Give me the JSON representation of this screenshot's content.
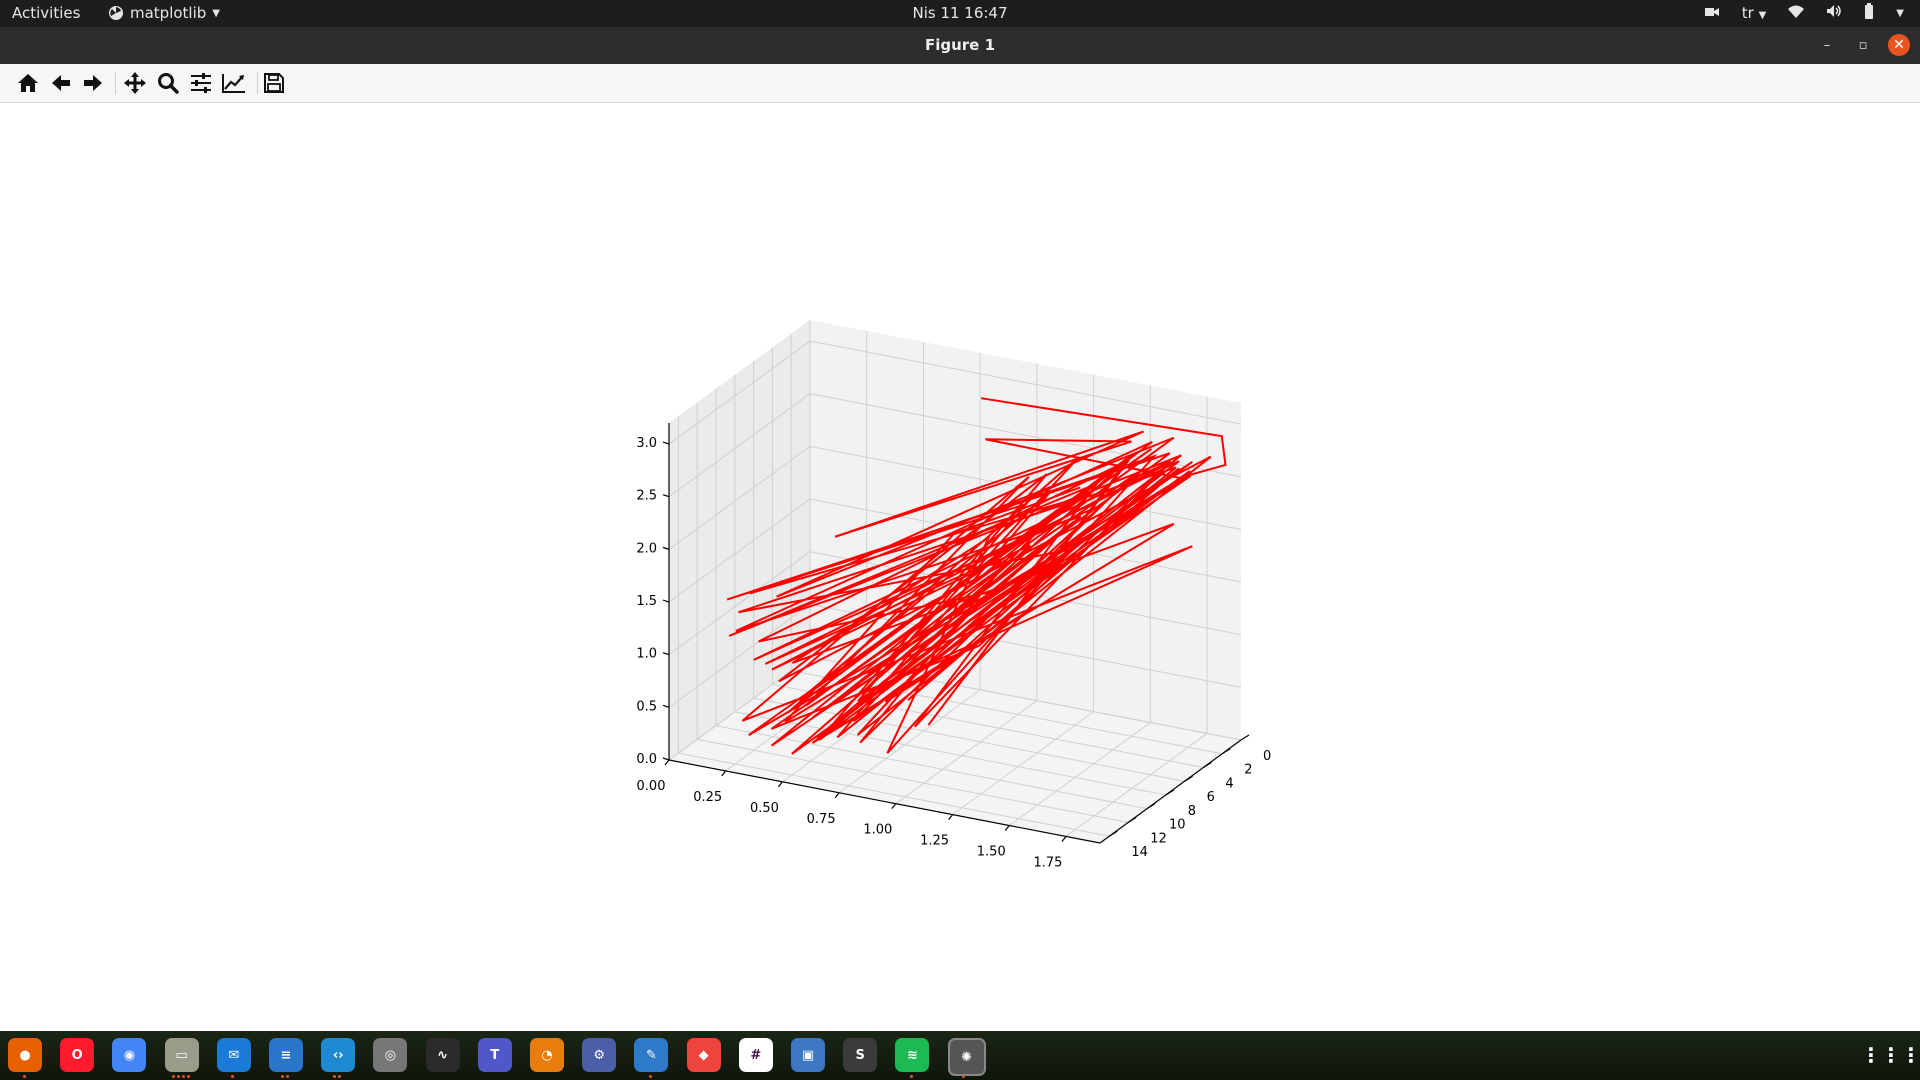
{
  "topbar": {
    "activities": "Activities",
    "app_name": "matplotlib",
    "clock": "Nis 11  16:47",
    "keyboard_layout": "tr"
  },
  "window": {
    "title": "Figure 1"
  },
  "toolbar": {
    "buttons": [
      "home-icon",
      "back-icon",
      "forward-icon",
      "pan-icon",
      "zoom-icon",
      "configure-subplots-icon",
      "edit-axis-icon",
      "save-icon"
    ]
  },
  "chart_data": {
    "type": "line",
    "projection": "3d",
    "color": "#ff0000",
    "title": "",
    "x_ticks": [
      "0.00",
      "0.25",
      "0.50",
      "0.75",
      "1.00",
      "1.25",
      "1.50",
      "1.75"
    ],
    "y_ticks": [
      "0",
      "2",
      "4",
      "6",
      "8",
      "10",
      "12",
      "14"
    ],
    "z_ticks": [
      "0.0",
      "0.5",
      "1.0",
      "1.5",
      "2.0",
      "2.5",
      "3.0"
    ],
    "xlim": [
      0,
      1.9
    ],
    "ylim": [
      0,
      15
    ],
    "zlim": [
      0,
      3.2
    ],
    "grid": true,
    "series": [
      {
        "x": [
          0.92,
          1.84,
          1.84,
          1.69,
          0.98,
          1.45,
          0.67,
          1.52,
          0.35,
          1.62,
          0.52,
          1.11,
          0.22,
          1.76,
          0.81,
          1.29,
          0.44,
          1.55,
          0.17,
          1.38,
          0.61,
          1.71,
          0.28,
          1.02,
          1.49,
          0.39,
          1.81,
          0.73,
          1.18,
          0.09,
          1.64,
          0.55,
          1.33,
          0.86,
          1.77,
          0.31,
          1.08,
          1.58,
          0.47,
          1.26,
          0.68,
          1.73,
          0.14,
          1.41,
          0.95,
          1.67,
          0.58,
          1.21,
          0.36,
          1.85,
          0.79,
          1.12,
          0.25,
          1.53,
          1.04,
          1.47,
          0.63,
          1.79,
          0.42,
          1.16,
          0.88,
          1.6,
          0.19,
          1.36,
          0.71,
          1.82,
          0.5,
          1.24,
          0.33,
          1.66,
          1.0,
          1.43,
          0.12,
          1.74,
          0.57,
          1.3,
          0.83,
          1.57,
          0.41,
          1.14,
          1.68,
          0.27,
          1.5,
          0.76,
          1.2,
          0.6,
          1.8,
          0.45,
          1.07,
          1.39
        ],
        "y": [
          4.0,
          0.6,
          0.2,
          1.5,
          5.0,
          0.8,
          13.5,
          1.2,
          12.0,
          0.4,
          13.0,
          3.5,
          12.5,
          1.8,
          14.0,
          2.5,
          13.0,
          1.0,
          12.0,
          4.5,
          14.0,
          2.0,
          11.5,
          6.5,
          1.5,
          13.5,
          3.0,
          12.5,
          5.5,
          11.0,
          1.3,
          13.0,
          4.0,
          12.0,
          2.2,
          14.0,
          7.0,
          1.8,
          12.5,
          5.0,
          13.5,
          2.8,
          11.0,
          6.0,
          12.5,
          1.0,
          13.0,
          4.0,
          12.0,
          2.0,
          14.0,
          8.0,
          11.5,
          3.0,
          12.5,
          1.5,
          13.5,
          4.5,
          12.0,
          9.0,
          13.0,
          2.0,
          11.0,
          5.5,
          12.5,
          3.5,
          14.0,
          6.5,
          12.0,
          1.8,
          13.0,
          4.0,
          11.5,
          2.5,
          13.5,
          7.5,
          12.0,
          3.0,
          14.0,
          9.5,
          2.2,
          12.5,
          5.0,
          13.0,
          8.5,
          12.0,
          3.8,
          13.5,
          10.5,
          4.8
        ],
        "z": [
          3.1,
          2.9,
          2.6,
          2.5,
          2.8,
          2.7,
          2.3,
          2.85,
          1.5,
          2.78,
          0.6,
          2.4,
          0.3,
          1.9,
          0.9,
          2.6,
          0.5,
          2.75,
          1.1,
          2.2,
          0.4,
          2.7,
          0.8,
          1.7,
          2.65,
          0.2,
          2.8,
          0.7,
          2.3,
          1.3,
          2.7,
          0.5,
          2.1,
          0.9,
          2.6,
          0.3,
          1.8,
          2.75,
          0.6,
          2.4,
          0.4,
          2.7,
          1.2,
          2.0,
          0.8,
          2.55,
          0.3,
          2.5,
          0.7,
          2.8,
          0.5,
          1.6,
          1.0,
          2.7,
          0.6,
          2.6,
          0.4,
          2.3,
          0.9,
          2.2,
          0.3,
          2.7,
          1.4,
          2.4,
          0.5,
          2.75,
          0.2,
          2.0,
          0.8,
          2.65,
          0.6,
          2.5,
          1.0,
          2.8,
          0.3,
          1.5,
          0.7,
          2.6,
          0.4,
          1.2,
          2.7,
          0.9,
          2.4,
          0.35,
          1.9,
          0.6,
          2.7,
          0.45,
          2.3,
          2.5
        ]
      }
    ]
  },
  "dock": {
    "apps": [
      {
        "name": "firefox-icon",
        "color": "#e66000",
        "glyph": "●"
      },
      {
        "name": "opera-icon",
        "color": "#ff1b2d",
        "glyph": "O"
      },
      {
        "name": "chrome-icon",
        "color": "#4285f4",
        "glyph": "◉"
      },
      {
        "name": "files-icon",
        "color": "#9b9b8a",
        "glyph": "▭"
      },
      {
        "name": "thunderbird-icon",
        "color": "#1a7bd6",
        "glyph": "✉"
      },
      {
        "name": "libreoffice-writer-icon",
        "color": "#2a74c9",
        "glyph": "≡"
      },
      {
        "name": "vscode-icon",
        "color": "#1f8ad2",
        "glyph": "‹›"
      },
      {
        "name": "screenshot-icon",
        "color": "#777",
        "glyph": "◎"
      },
      {
        "name": "system-monitor-icon",
        "color": "#2b2b2b",
        "glyph": "∿"
      },
      {
        "name": "teams-icon",
        "color": "#5058c8",
        "glyph": "T"
      },
      {
        "name": "blender-icon",
        "color": "#e87d0d",
        "glyph": "◔"
      },
      {
        "name": "network-tool-icon",
        "color": "#4b5ea8",
        "glyph": "⚙"
      },
      {
        "name": "text-editor-icon",
        "color": "#2f79c9",
        "glyph": "✎"
      },
      {
        "name": "anydesk-icon",
        "color": "#ef443b",
        "glyph": "◆"
      },
      {
        "name": "slack-icon",
        "color": "#ffffff",
        "glyph": "#"
      },
      {
        "name": "virtualbox-icon",
        "color": "#3c78c3",
        "glyph": "▣"
      },
      {
        "name": "sublime-text-icon",
        "color": "#3b3b3b",
        "glyph": "S"
      },
      {
        "name": "spotify-icon",
        "color": "#1db954",
        "glyph": "≋"
      },
      {
        "name": "matplotlib-icon",
        "color": "#3a3a3a",
        "glyph": "✺"
      }
    ],
    "show_apps": "show-apps-icon"
  }
}
